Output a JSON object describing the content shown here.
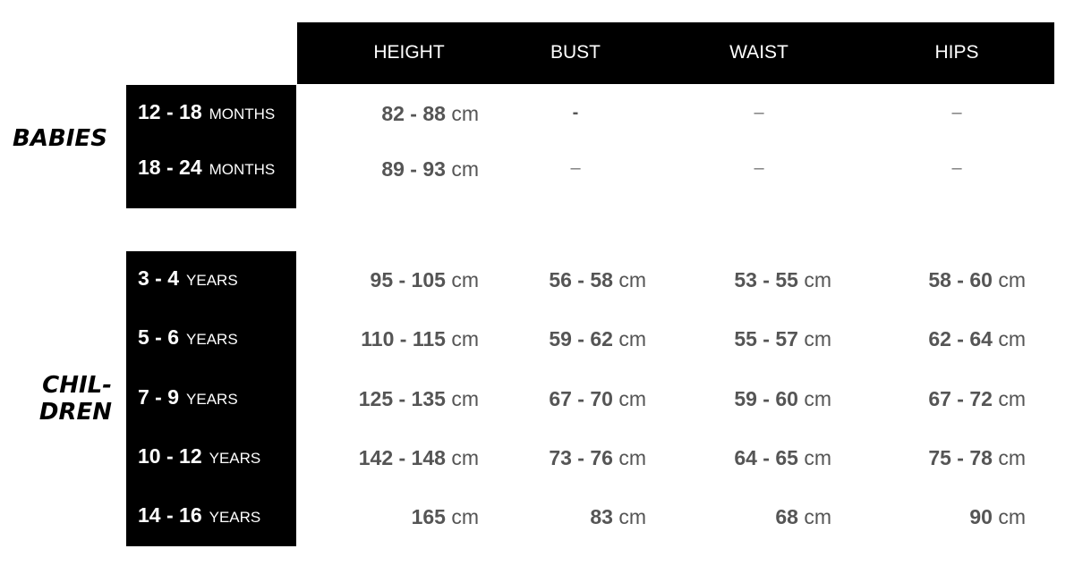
{
  "columns": [
    "HEIGHT",
    "BUST",
    "WAIST",
    "HIPS"
  ],
  "groups": [
    {
      "label": "BABIES",
      "rows": [
        {
          "size": "12 - 18",
          "unit": "MONTHS",
          "values": [
            "82 - 88",
            "-",
            "–",
            "–"
          ]
        },
        {
          "size": "18 - 24",
          "unit": "MONTHS",
          "values": [
            "89 - 93",
            "–",
            "–",
            "–"
          ]
        }
      ]
    },
    {
      "label_line1": "CHIL-",
      "label_line2": "DREN",
      "rows": [
        {
          "size": "3 - 4",
          "unit": "YEARS",
          "values": [
            "95 - 105",
            "56 - 58",
            "53 - 55",
            "58 - 60"
          ]
        },
        {
          "size": "5 - 6",
          "unit": "YEARS",
          "values": [
            "110 - 115",
            "59 - 62",
            "55 - 57",
            "62 - 64"
          ]
        },
        {
          "size": "7 - 9",
          "unit": "YEARS",
          "values": [
            "125 - 135",
            "67 - 70",
            "59 - 60",
            "67 - 72"
          ]
        },
        {
          "size": "10 - 12",
          "unit": "YEARS",
          "values": [
            "142 - 148",
            "73 - 76",
            "64 - 65",
            "75 - 78"
          ]
        },
        {
          "size": "14 - 16",
          "unit": "YEARS",
          "values": [
            "165",
            "83",
            "68",
            "90"
          ]
        }
      ]
    }
  ],
  "unit_cm": "cm",
  "colors": {
    "header_bg": "#000000",
    "value_text": "#555555"
  }
}
